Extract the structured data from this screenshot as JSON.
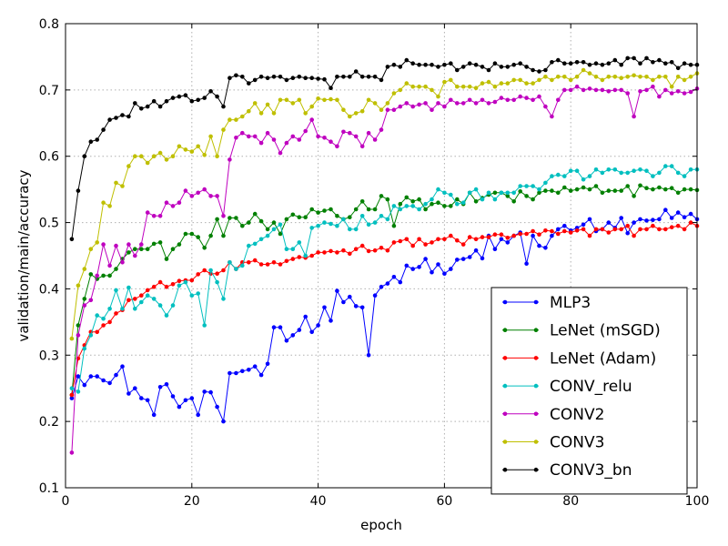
{
  "chart_data": {
    "type": "line",
    "xlabel": "epoch",
    "ylabel": "validation/main/accuracy",
    "xlim": [
      0,
      100
    ],
    "ylim": [
      0.1,
      0.8
    ],
    "xticks": [
      0,
      20,
      40,
      60,
      80,
      100
    ],
    "yticks": [
      0.1,
      0.2,
      0.3,
      0.4,
      0.5,
      0.6,
      0.7,
      0.8
    ],
    "xtick_labels": [
      "0",
      "20",
      "40",
      "60",
      "80",
      "100"
    ],
    "ytick_labels": [
      "0.1",
      "0.2",
      "0.3",
      "0.4",
      "0.5",
      "0.6",
      "0.7",
      "0.8"
    ],
    "grid": true,
    "legend_position": "bottom-right",
    "x": [
      1,
      2,
      3,
      4,
      5,
      6,
      7,
      8,
      9,
      10,
      11,
      12,
      13,
      14,
      15,
      16,
      17,
      18,
      19,
      20,
      21,
      22,
      23,
      24,
      25,
      26,
      27,
      28,
      29,
      30,
      31,
      32,
      33,
      34,
      35,
      36,
      37,
      38,
      39,
      40,
      41,
      42,
      43,
      44,
      45,
      46,
      47,
      48,
      49,
      50,
      51,
      52,
      53,
      54,
      55,
      56,
      57,
      58,
      59,
      60,
      61,
      62,
      63,
      64,
      65,
      66,
      67,
      68,
      69,
      70,
      71,
      72,
      73,
      74,
      75,
      76,
      77,
      78,
      79,
      80,
      81,
      82,
      83,
      84,
      85,
      86,
      87,
      88,
      89,
      90,
      91,
      92,
      93,
      94,
      95,
      96,
      97,
      98,
      99,
      100
    ],
    "series": [
      {
        "name": "MLP3",
        "color": "#0000ff",
        "values": [
          0.235,
          0.268,
          0.255,
          0.268,
          0.268,
          0.262,
          0.258,
          0.27,
          0.283,
          0.242,
          0.25,
          0.235,
          0.232,
          0.21,
          0.252,
          0.256,
          0.238,
          0.222,
          0.232,
          0.235,
          0.21,
          0.245,
          0.244,
          0.222,
          0.2,
          0.273,
          0.273,
          0.276,
          0.278,
          0.283,
          0.27,
          0.287,
          0.342,
          0.342,
          0.322,
          0.33,
          0.338,
          0.358,
          0.335,
          0.345,
          0.372,
          0.352,
          0.397,
          0.38,
          0.388,
          0.374,
          0.372,
          0.3,
          0.39,
          0.403,
          0.408,
          0.418,
          0.41,
          0.435,
          0.43,
          0.433,
          0.445,
          0.425,
          0.437,
          0.423,
          0.43,
          0.444,
          0.445,
          0.448,
          0.458,
          0.446,
          0.48,
          0.46,
          0.475,
          0.47,
          0.48,
          0.485,
          0.438,
          0.48,
          0.465,
          0.462,
          0.48,
          0.49,
          0.495,
          0.488,
          0.492,
          0.497,
          0.505,
          0.487,
          0.49,
          0.5,
          0.492,
          0.507,
          0.484,
          0.5,
          0.505,
          0.503,
          0.504,
          0.505,
          0.519,
          0.507,
          0.515,
          0.508,
          0.513,
          0.505
        ]
      },
      {
        "name": "LeNet (mSGD)",
        "color": "#008000",
        "values": [
          0.24,
          0.345,
          0.385,
          0.422,
          0.415,
          0.42,
          0.42,
          0.43,
          0.445,
          0.455,
          0.46,
          0.46,
          0.46,
          0.468,
          0.47,
          0.445,
          0.46,
          0.467,
          0.483,
          0.483,
          0.478,
          0.462,
          0.48,
          0.505,
          0.48,
          0.507,
          0.507,
          0.495,
          0.5,
          0.513,
          0.502,
          0.49,
          0.5,
          0.483,
          0.505,
          0.512,
          0.508,
          0.508,
          0.52,
          0.515,
          0.518,
          0.52,
          0.51,
          0.505,
          0.508,
          0.52,
          0.532,
          0.52,
          0.52,
          0.54,
          0.535,
          0.495,
          0.528,
          0.538,
          0.532,
          0.535,
          0.52,
          0.528,
          0.53,
          0.525,
          0.525,
          0.535,
          0.528,
          0.545,
          0.532,
          0.537,
          0.542,
          0.545,
          0.545,
          0.54,
          0.532,
          0.547,
          0.54,
          0.535,
          0.545,
          0.548,
          0.548,
          0.545,
          0.553,
          0.548,
          0.55,
          0.553,
          0.55,
          0.555,
          0.545,
          0.548,
          0.548,
          0.548,
          0.555,
          0.54,
          0.556,
          0.552,
          0.55,
          0.553,
          0.55,
          0.552,
          0.545,
          0.55,
          0.55,
          0.549
        ]
      },
      {
        "name": "LeNet (Adam)",
        "color": "#ff0000",
        "values": [
          0.24,
          0.295,
          0.315,
          0.335,
          0.335,
          0.345,
          0.35,
          0.363,
          0.368,
          0.383,
          0.385,
          0.39,
          0.398,
          0.403,
          0.41,
          0.403,
          0.407,
          0.412,
          0.413,
          0.413,
          0.422,
          0.428,
          0.423,
          0.423,
          0.428,
          0.44,
          0.43,
          0.44,
          0.44,
          0.443,
          0.437,
          0.437,
          0.44,
          0.437,
          0.442,
          0.445,
          0.448,
          0.447,
          0.45,
          0.455,
          0.455,
          0.457,
          0.455,
          0.458,
          0.453,
          0.46,
          0.465,
          0.457,
          0.458,
          0.462,
          0.458,
          0.47,
          0.472,
          0.475,
          0.465,
          0.475,
          0.467,
          0.47,
          0.475,
          0.475,
          0.48,
          0.473,
          0.467,
          0.478,
          0.475,
          0.478,
          0.478,
          0.482,
          0.482,
          0.477,
          0.48,
          0.483,
          0.483,
          0.487,
          0.482,
          0.488,
          0.487,
          0.483,
          0.487,
          0.485,
          0.488,
          0.49,
          0.48,
          0.49,
          0.49,
          0.485,
          0.49,
          0.49,
          0.495,
          0.48,
          0.49,
          0.49,
          0.495,
          0.49,
          0.49,
          0.493,
          0.495,
          0.49,
          0.5,
          0.495
        ]
      },
      {
        "name": "CONV_relu",
        "color": "#00bfbf",
        "values": [
          0.25,
          0.245,
          0.31,
          0.33,
          0.36,
          0.355,
          0.37,
          0.398,
          0.37,
          0.402,
          0.37,
          0.38,
          0.39,
          0.385,
          0.375,
          0.36,
          0.375,
          0.405,
          0.41,
          0.39,
          0.393,
          0.345,
          0.428,
          0.41,
          0.385,
          0.44,
          0.43,
          0.435,
          0.465,
          0.468,
          0.475,
          0.48,
          0.49,
          0.497,
          0.46,
          0.46,
          0.47,
          0.45,
          0.492,
          0.495,
          0.5,
          0.498,
          0.495,
          0.505,
          0.49,
          0.49,
          0.51,
          0.497,
          0.5,
          0.51,
          0.505,
          0.525,
          0.52,
          0.525,
          0.525,
          0.52,
          0.528,
          0.535,
          0.55,
          0.545,
          0.542,
          0.528,
          0.53,
          0.545,
          0.55,
          0.535,
          0.545,
          0.535,
          0.545,
          0.545,
          0.545,
          0.555,
          0.555,
          0.555,
          0.55,
          0.56,
          0.57,
          0.572,
          0.57,
          0.578,
          0.578,
          0.565,
          0.57,
          0.58,
          0.575,
          0.58,
          0.58,
          0.575,
          0.575,
          0.578,
          0.58,
          0.578,
          0.57,
          0.575,
          0.585,
          0.585,
          0.575,
          0.57,
          0.58,
          0.58
        ]
      },
      {
        "name": "CONV2",
        "color": "#bf00bf",
        "values": [
          0.153,
          0.33,
          0.375,
          0.383,
          0.42,
          0.467,
          0.435,
          0.465,
          0.44,
          0.467,
          0.45,
          0.467,
          0.515,
          0.51,
          0.51,
          0.53,
          0.525,
          0.53,
          0.548,
          0.54,
          0.545,
          0.55,
          0.54,
          0.54,
          0.51,
          0.595,
          0.628,
          0.635,
          0.63,
          0.63,
          0.62,
          0.635,
          0.625,
          0.605,
          0.62,
          0.63,
          0.625,
          0.638,
          0.655,
          0.63,
          0.628,
          0.622,
          0.615,
          0.637,
          0.635,
          0.63,
          0.615,
          0.635,
          0.625,
          0.64,
          0.67,
          0.67,
          0.675,
          0.68,
          0.675,
          0.678,
          0.68,
          0.67,
          0.68,
          0.675,
          0.685,
          0.68,
          0.68,
          0.685,
          0.68,
          0.685,
          0.68,
          0.682,
          0.688,
          0.685,
          0.685,
          0.69,
          0.688,
          0.685,
          0.69,
          0.675,
          0.66,
          0.685,
          0.7,
          0.7,
          0.705,
          0.7,
          0.702,
          0.7,
          0.7,
          0.698,
          0.7,
          0.7,
          0.695,
          0.66,
          0.698,
          0.7,
          0.705,
          0.69,
          0.7,
          0.695,
          0.698,
          0.695,
          0.697,
          0.702
        ]
      },
      {
        "name": "CONV3",
        "color": "#bfbf00",
        "values": [
          0.325,
          0.405,
          0.43,
          0.46,
          0.47,
          0.53,
          0.525,
          0.56,
          0.555,
          0.585,
          0.6,
          0.6,
          0.59,
          0.6,
          0.605,
          0.595,
          0.6,
          0.615,
          0.61,
          0.607,
          0.615,
          0.602,
          0.63,
          0.6,
          0.64,
          0.655,
          0.655,
          0.66,
          0.668,
          0.68,
          0.665,
          0.678,
          0.665,
          0.685,
          0.685,
          0.68,
          0.685,
          0.665,
          0.675,
          0.687,
          0.685,
          0.686,
          0.685,
          0.67,
          0.66,
          0.665,
          0.668,
          0.685,
          0.68,
          0.67,
          0.68,
          0.695,
          0.7,
          0.71,
          0.705,
          0.705,
          0.705,
          0.7,
          0.69,
          0.712,
          0.715,
          0.705,
          0.705,
          0.705,
          0.703,
          0.71,
          0.712,
          0.705,
          0.71,
          0.71,
          0.715,
          0.715,
          0.71,
          0.71,
          0.715,
          0.72,
          0.715,
          0.72,
          0.72,
          0.715,
          0.72,
          0.73,
          0.725,
          0.72,
          0.715,
          0.72,
          0.72,
          0.718,
          0.72,
          0.722,
          0.72,
          0.72,
          0.715,
          0.72,
          0.72,
          0.705,
          0.72,
          0.715,
          0.72,
          0.725
        ]
      },
      {
        "name": "CONV3_bn",
        "color": "#000000",
        "values": [
          0.475,
          0.548,
          0.6,
          0.622,
          0.625,
          0.64,
          0.655,
          0.658,
          0.662,
          0.66,
          0.68,
          0.672,
          0.675,
          0.683,
          0.675,
          0.683,
          0.688,
          0.69,
          0.692,
          0.683,
          0.685,
          0.688,
          0.698,
          0.69,
          0.675,
          0.718,
          0.722,
          0.72,
          0.71,
          0.715,
          0.72,
          0.718,
          0.72,
          0.72,
          0.715,
          0.718,
          0.72,
          0.718,
          0.718,
          0.717,
          0.716,
          0.703,
          0.72,
          0.72,
          0.72,
          0.728,
          0.72,
          0.72,
          0.72,
          0.715,
          0.735,
          0.738,
          0.735,
          0.745,
          0.74,
          0.738,
          0.738,
          0.738,
          0.735,
          0.738,
          0.74,
          0.73,
          0.735,
          0.74,
          0.738,
          0.735,
          0.73,
          0.74,
          0.735,
          0.735,
          0.738,
          0.74,
          0.735,
          0.73,
          0.728,
          0.73,
          0.742,
          0.745,
          0.74,
          0.74,
          0.742,
          0.742,
          0.738,
          0.74,
          0.738,
          0.74,
          0.745,
          0.738,
          0.748,
          0.748,
          0.74,
          0.748,
          0.742,
          0.745,
          0.74,
          0.742,
          0.733,
          0.74,
          0.738,
          0.738
        ]
      }
    ]
  }
}
